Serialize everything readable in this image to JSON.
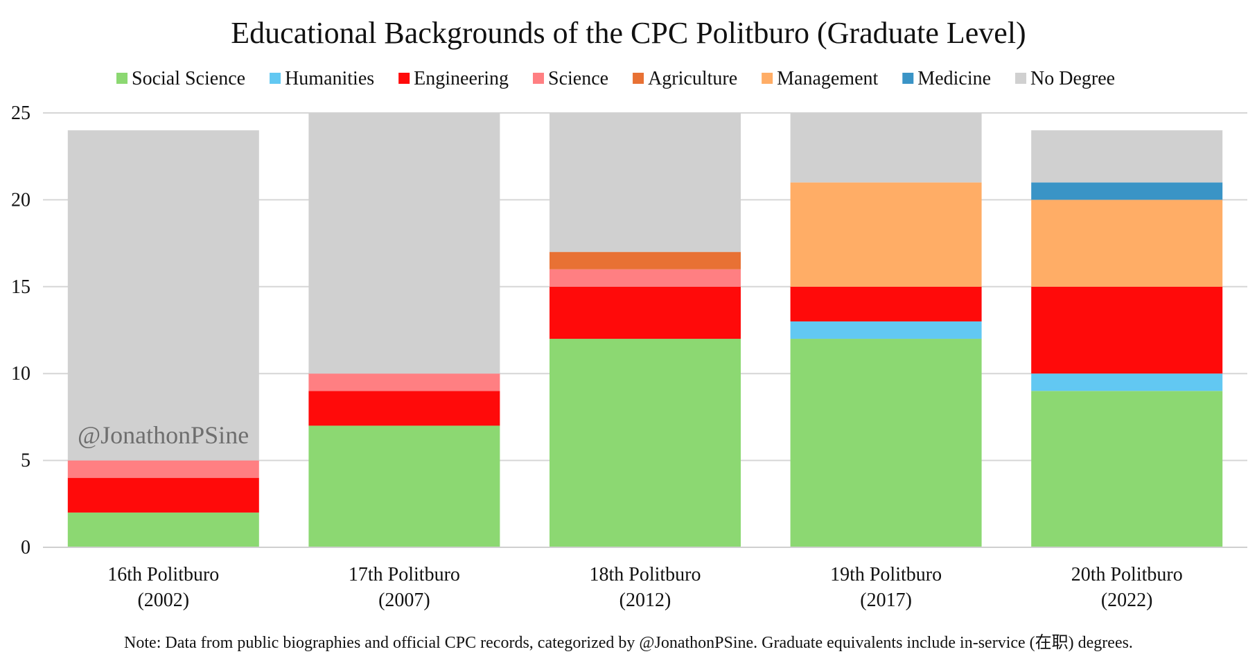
{
  "chart_data": {
    "type": "bar",
    "stacked": true,
    "title": "Educational Backgrounds of the CPC Politburo (Graduate Level)",
    "categories": [
      [
        "16th Politburo",
        "(2002)"
      ],
      [
        "17th Politburo",
        "(2007)"
      ],
      [
        "18th Politburo",
        "(2012)"
      ],
      [
        "19th Politburo",
        "(2017)"
      ],
      [
        "20th Politburo",
        "(2022)"
      ]
    ],
    "series": [
      {
        "name": "Social Science",
        "color": "#8cd872",
        "values": [
          2,
          7,
          12,
          12,
          9
        ]
      },
      {
        "name": "Humanities",
        "color": "#62c8f2",
        "values": [
          0,
          0,
          0,
          1,
          1
        ]
      },
      {
        "name": "Engineering",
        "color": "#ff0a0a",
        "values": [
          2,
          2,
          3,
          2,
          5
        ]
      },
      {
        "name": "Science",
        "color": "#ff7f82",
        "values": [
          1,
          1,
          1,
          0,
          0
        ]
      },
      {
        "name": "Agriculture",
        "color": "#e87134",
        "values": [
          0,
          0,
          1,
          0,
          0
        ]
      },
      {
        "name": "Management",
        "color": "#ffad66",
        "values": [
          0,
          0,
          0,
          6,
          5
        ]
      },
      {
        "name": "Medicine",
        "color": "#3a94c6",
        "values": [
          0,
          0,
          0,
          0,
          1
        ]
      },
      {
        "name": "No Degree",
        "color": "#d0d0d0",
        "values": [
          19,
          15,
          8,
          4,
          3
        ]
      }
    ],
    "ylim": [
      0,
      25
    ],
    "yticks": [
      0,
      5,
      10,
      15,
      20,
      25
    ],
    "grid": true,
    "legend_position": "top",
    "watermark": "@JonathonPSine",
    "note": "Note: Data from public biographies and official CPC records, categorized by @JonathonPSine. Graduate equivalents include in-service (在职) degrees."
  }
}
